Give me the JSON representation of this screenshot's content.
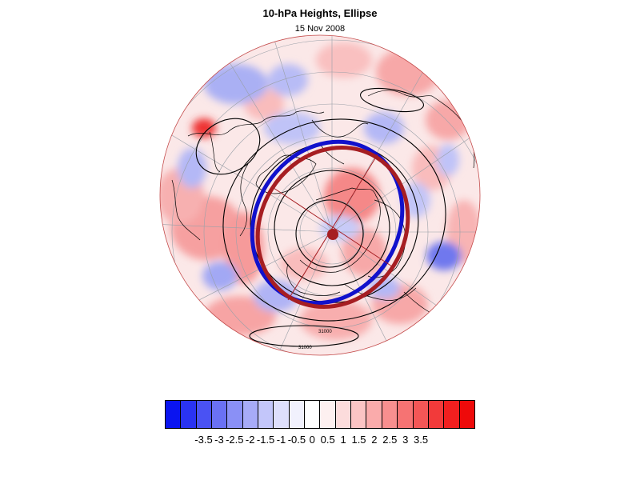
{
  "title": "10-hPa Heights, Ellipse",
  "subtitle": "15 Nov 2008",
  "contour_labels": [
    "31000",
    "31000"
  ],
  "colors": {
    "ellipse_red": "#a61e22",
    "ellipse_blue": "#1111cc",
    "coast": "#000000",
    "grid": "#9aa0a8",
    "map_border": "#c44b4b"
  },
  "colorbar": {
    "colors": [
      "#0a14f0",
      "#2a33f2",
      "#4a52f3",
      "#6a71f4",
      "#8a90f6",
      "#a7abf8",
      "#c3c6fa",
      "#dedffc",
      "#f1f1fd",
      "#ffffff",
      "#fdf0f0",
      "#fcdcdc",
      "#fbc4c4",
      "#faabab",
      "#f88f8f",
      "#f67373",
      "#f45656",
      "#f23a3a",
      "#f11f1f",
      "#ee0a0a"
    ],
    "labels": [
      "-3.5",
      "-3",
      "-2.5",
      "-2",
      "-1.5",
      "-1",
      "-0.5",
      "0",
      "0.5",
      "1",
      "1.5",
      "2",
      "2.5",
      "3",
      "3.5"
    ]
  }
}
